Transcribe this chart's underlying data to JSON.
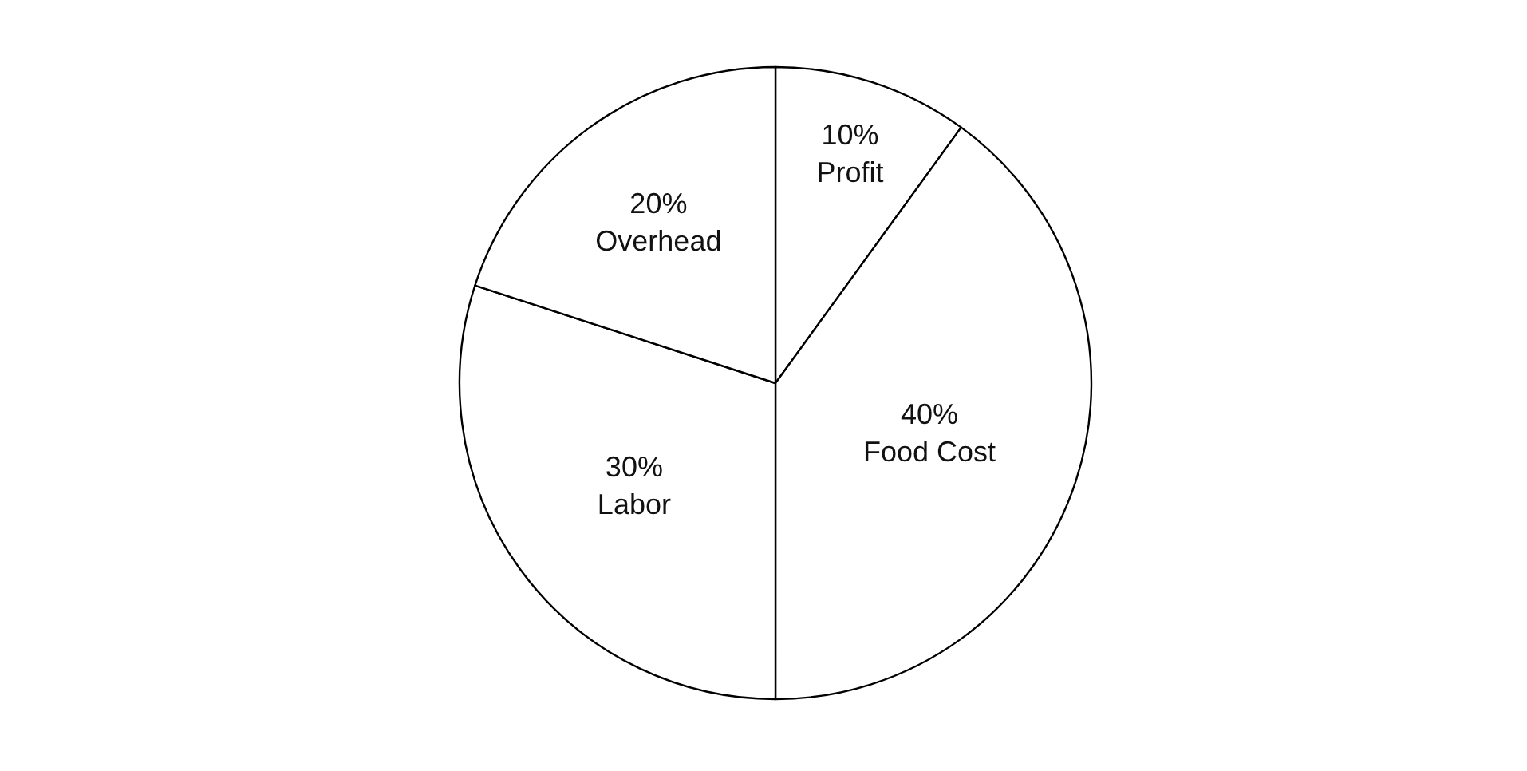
{
  "chart_data": {
    "type": "pie",
    "categories": [
      "Profit",
      "Food Cost",
      "Labor",
      "Overhead"
    ],
    "values": [
      10,
      40,
      30,
      20
    ],
    "value_labels": [
      "10%",
      "40%",
      "30%",
      "20%"
    ],
    "colors": [
      "#ffffff",
      "#ffffff",
      "#ffffff",
      "#ffffff"
    ],
    "legend": false
  }
}
